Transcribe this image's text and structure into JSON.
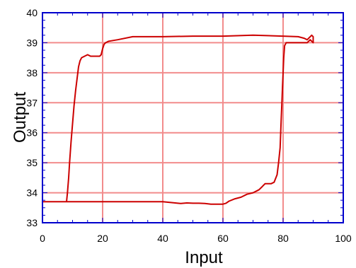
{
  "chart_data": {
    "type": "line",
    "title": "",
    "xlabel": "Input",
    "ylabel": "Output",
    "xlim": [
      0,
      100
    ],
    "ylim": [
      33,
      40
    ],
    "xticks": [
      "0",
      "20",
      "40",
      "60",
      "80",
      "100"
    ],
    "yticks": [
      "33",
      "34",
      "35",
      "36",
      "37",
      "38",
      "39",
      "40"
    ],
    "grid": true,
    "colors": {
      "line": "#cc0000",
      "grid": "#f28c8c",
      "frame": "#0000cc"
    },
    "series": [
      {
        "x": [
          0,
          8,
          8.3,
          8.7,
          9,
          9.5,
          10,
          10.5,
          11,
          11.5,
          12,
          12.5,
          13,
          14,
          15,
          16,
          17,
          18,
          19,
          19.5,
          20,
          20.5,
          21,
          22,
          25,
          30,
          40,
          50,
          60,
          70,
          80,
          85,
          87,
          88,
          89,
          89.5,
          90,
          90,
          89,
          88,
          85,
          82,
          81,
          80.5,
          80.2,
          80,
          79.8,
          79.6,
          79.4,
          79.2,
          79,
          78.5,
          78,
          77,
          76,
          75,
          74,
          73,
          72,
          70,
          68,
          66,
          64,
          62,
          61,
          60,
          58,
          56,
          54,
          52,
          50,
          48,
          46,
          45,
          40,
          30,
          20,
          10,
          5,
          0
        ],
        "y": [
          33.7,
          33.7,
          34.0,
          34.5,
          35.0,
          35.7,
          36.3,
          36.9,
          37.4,
          37.8,
          38.2,
          38.4,
          38.5,
          38.55,
          38.6,
          38.55,
          38.55,
          38.55,
          38.55,
          38.6,
          38.8,
          38.95,
          39.0,
          39.05,
          39.1,
          39.2,
          39.2,
          39.22,
          39.22,
          39.25,
          39.22,
          39.2,
          39.15,
          39.1,
          39.2,
          39.25,
          39.2,
          39.0,
          39.1,
          39.0,
          39.0,
          39.0,
          39.0,
          38.9,
          38.5,
          38.0,
          37.5,
          37.0,
          36.5,
          36.0,
          35.5,
          35.0,
          34.6,
          34.35,
          34.3,
          34.3,
          34.3,
          34.2,
          34.1,
          34.0,
          33.95,
          33.85,
          33.8,
          33.72,
          33.65,
          33.62,
          33.62,
          33.62,
          33.64,
          33.65,
          33.65,
          33.66,
          33.64,
          33.65,
          33.7,
          33.7,
          33.7,
          33.7,
          33.7,
          33.7
        ]
      }
    ]
  }
}
